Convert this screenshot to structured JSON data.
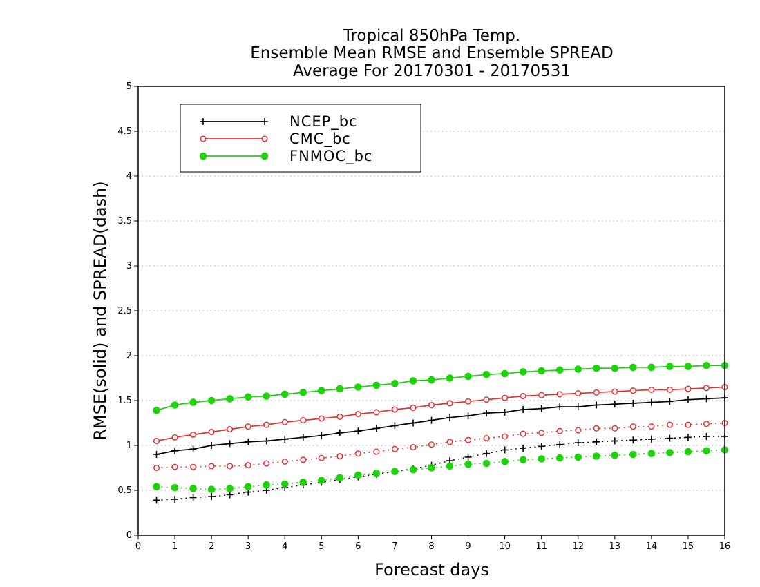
{
  "chart_data": {
    "type": "line",
    "title_lines": [
      "Tropical 850hPa Temp.",
      "Ensemble Mean RMSE and Ensemble SPREAD",
      "Average For 20170301 - 20170531"
    ],
    "xlabel": "Forecast days",
    "ylabel": "RMSE(solid) and SPREAD(dash)",
    "xlim": [
      0,
      16
    ],
    "ylim": [
      0,
      5
    ],
    "xticks": [
      "0",
      "1",
      "2",
      "3",
      "4",
      "5",
      "6",
      "7",
      "8",
      "9",
      "10",
      "11",
      "12",
      "13",
      "14",
      "15",
      "16"
    ],
    "yticks": [
      "0",
      "0.5",
      "1",
      "1.5",
      "2",
      "2.5",
      "3",
      "3.5",
      "4",
      "4.5",
      "5"
    ],
    "grid": "horizontal dotted",
    "legend_placement": "top-left",
    "x": [
      0.5,
      1,
      1.5,
      2,
      2.5,
      3,
      3.5,
      4,
      4.5,
      5,
      5.5,
      6,
      6.5,
      7,
      7.5,
      8,
      8.5,
      9,
      9.5,
      10,
      10.5,
      11,
      11.5,
      12,
      12.5,
      13,
      13.5,
      14,
      14.5,
      15,
      15.5,
      16
    ],
    "series": [
      {
        "name": "NCEP_bc",
        "color": "#000000",
        "marker": "plus",
        "rmse": [
          0.9,
          0.94,
          0.96,
          1.0,
          1.02,
          1.04,
          1.05,
          1.07,
          1.09,
          1.11,
          1.14,
          1.16,
          1.19,
          1.22,
          1.25,
          1.28,
          1.31,
          1.33,
          1.36,
          1.37,
          1.4,
          1.41,
          1.43,
          1.43,
          1.45,
          1.46,
          1.47,
          1.48,
          1.49,
          1.51,
          1.52,
          1.53
        ],
        "spread": [
          0.39,
          0.4,
          0.42,
          0.43,
          0.45,
          0.48,
          0.5,
          0.53,
          0.56,
          0.59,
          0.62,
          0.65,
          0.68,
          0.71,
          0.74,
          0.78,
          0.83,
          0.87,
          0.91,
          0.95,
          0.97,
          0.99,
          1.01,
          1.03,
          1.04,
          1.05,
          1.06,
          1.07,
          1.08,
          1.09,
          1.1,
          1.1
        ]
      },
      {
        "name": "CMC_bc",
        "color": "#e8302e",
        "marker": "open-circle",
        "rmse": [
          1.05,
          1.09,
          1.12,
          1.15,
          1.18,
          1.21,
          1.23,
          1.26,
          1.28,
          1.3,
          1.32,
          1.35,
          1.37,
          1.4,
          1.42,
          1.45,
          1.47,
          1.49,
          1.51,
          1.53,
          1.55,
          1.56,
          1.57,
          1.58,
          1.59,
          1.6,
          1.61,
          1.62,
          1.62,
          1.63,
          1.64,
          1.65
        ],
        "spread": [
          0.75,
          0.76,
          0.76,
          0.77,
          0.77,
          0.78,
          0.8,
          0.82,
          0.84,
          0.86,
          0.88,
          0.91,
          0.93,
          0.96,
          0.98,
          1.01,
          1.04,
          1.06,
          1.08,
          1.1,
          1.13,
          1.14,
          1.16,
          1.17,
          1.19,
          1.19,
          1.21,
          1.21,
          1.23,
          1.23,
          1.24,
          1.25
        ]
      },
      {
        "name": "FNMOC_bc",
        "color": "#1ed20c",
        "marker": "filled-circle",
        "rmse": [
          1.39,
          1.45,
          1.48,
          1.5,
          1.52,
          1.54,
          1.55,
          1.57,
          1.59,
          1.61,
          1.63,
          1.65,
          1.67,
          1.69,
          1.72,
          1.73,
          1.75,
          1.77,
          1.79,
          1.8,
          1.82,
          1.83,
          1.84,
          1.85,
          1.86,
          1.86,
          1.87,
          1.87,
          1.88,
          1.88,
          1.89,
          1.89
        ],
        "spread": [
          0.54,
          0.53,
          0.52,
          0.51,
          0.52,
          0.54,
          0.56,
          0.57,
          0.59,
          0.61,
          0.64,
          0.67,
          0.69,
          0.71,
          0.73,
          0.75,
          0.77,
          0.79,
          0.8,
          0.82,
          0.84,
          0.85,
          0.86,
          0.87,
          0.88,
          0.89,
          0.9,
          0.91,
          0.92,
          0.93,
          0.94,
          0.95
        ]
      }
    ]
  }
}
